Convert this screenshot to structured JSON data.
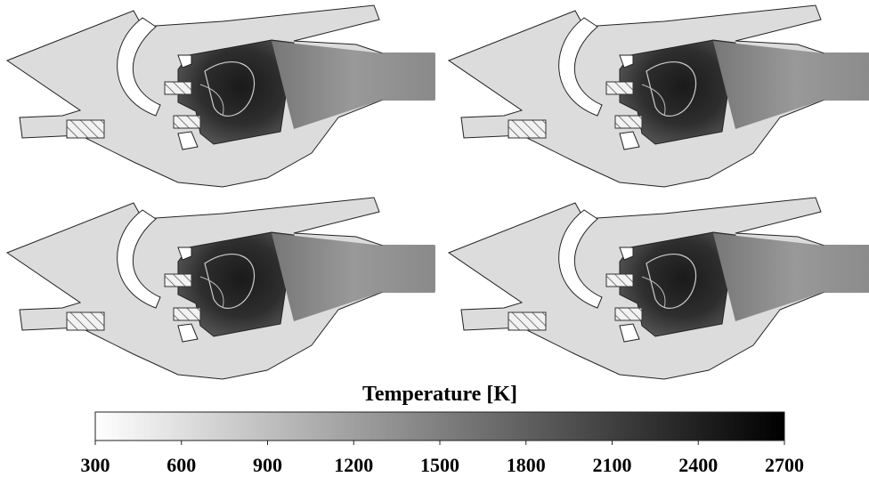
{
  "colorbar": {
    "title": "Temperature [K]",
    "lim": [
      300,
      2700
    ],
    "ticks": [
      300,
      600,
      900,
      1200,
      1500,
      1800,
      2100,
      2400,
      2700
    ]
  }
}
